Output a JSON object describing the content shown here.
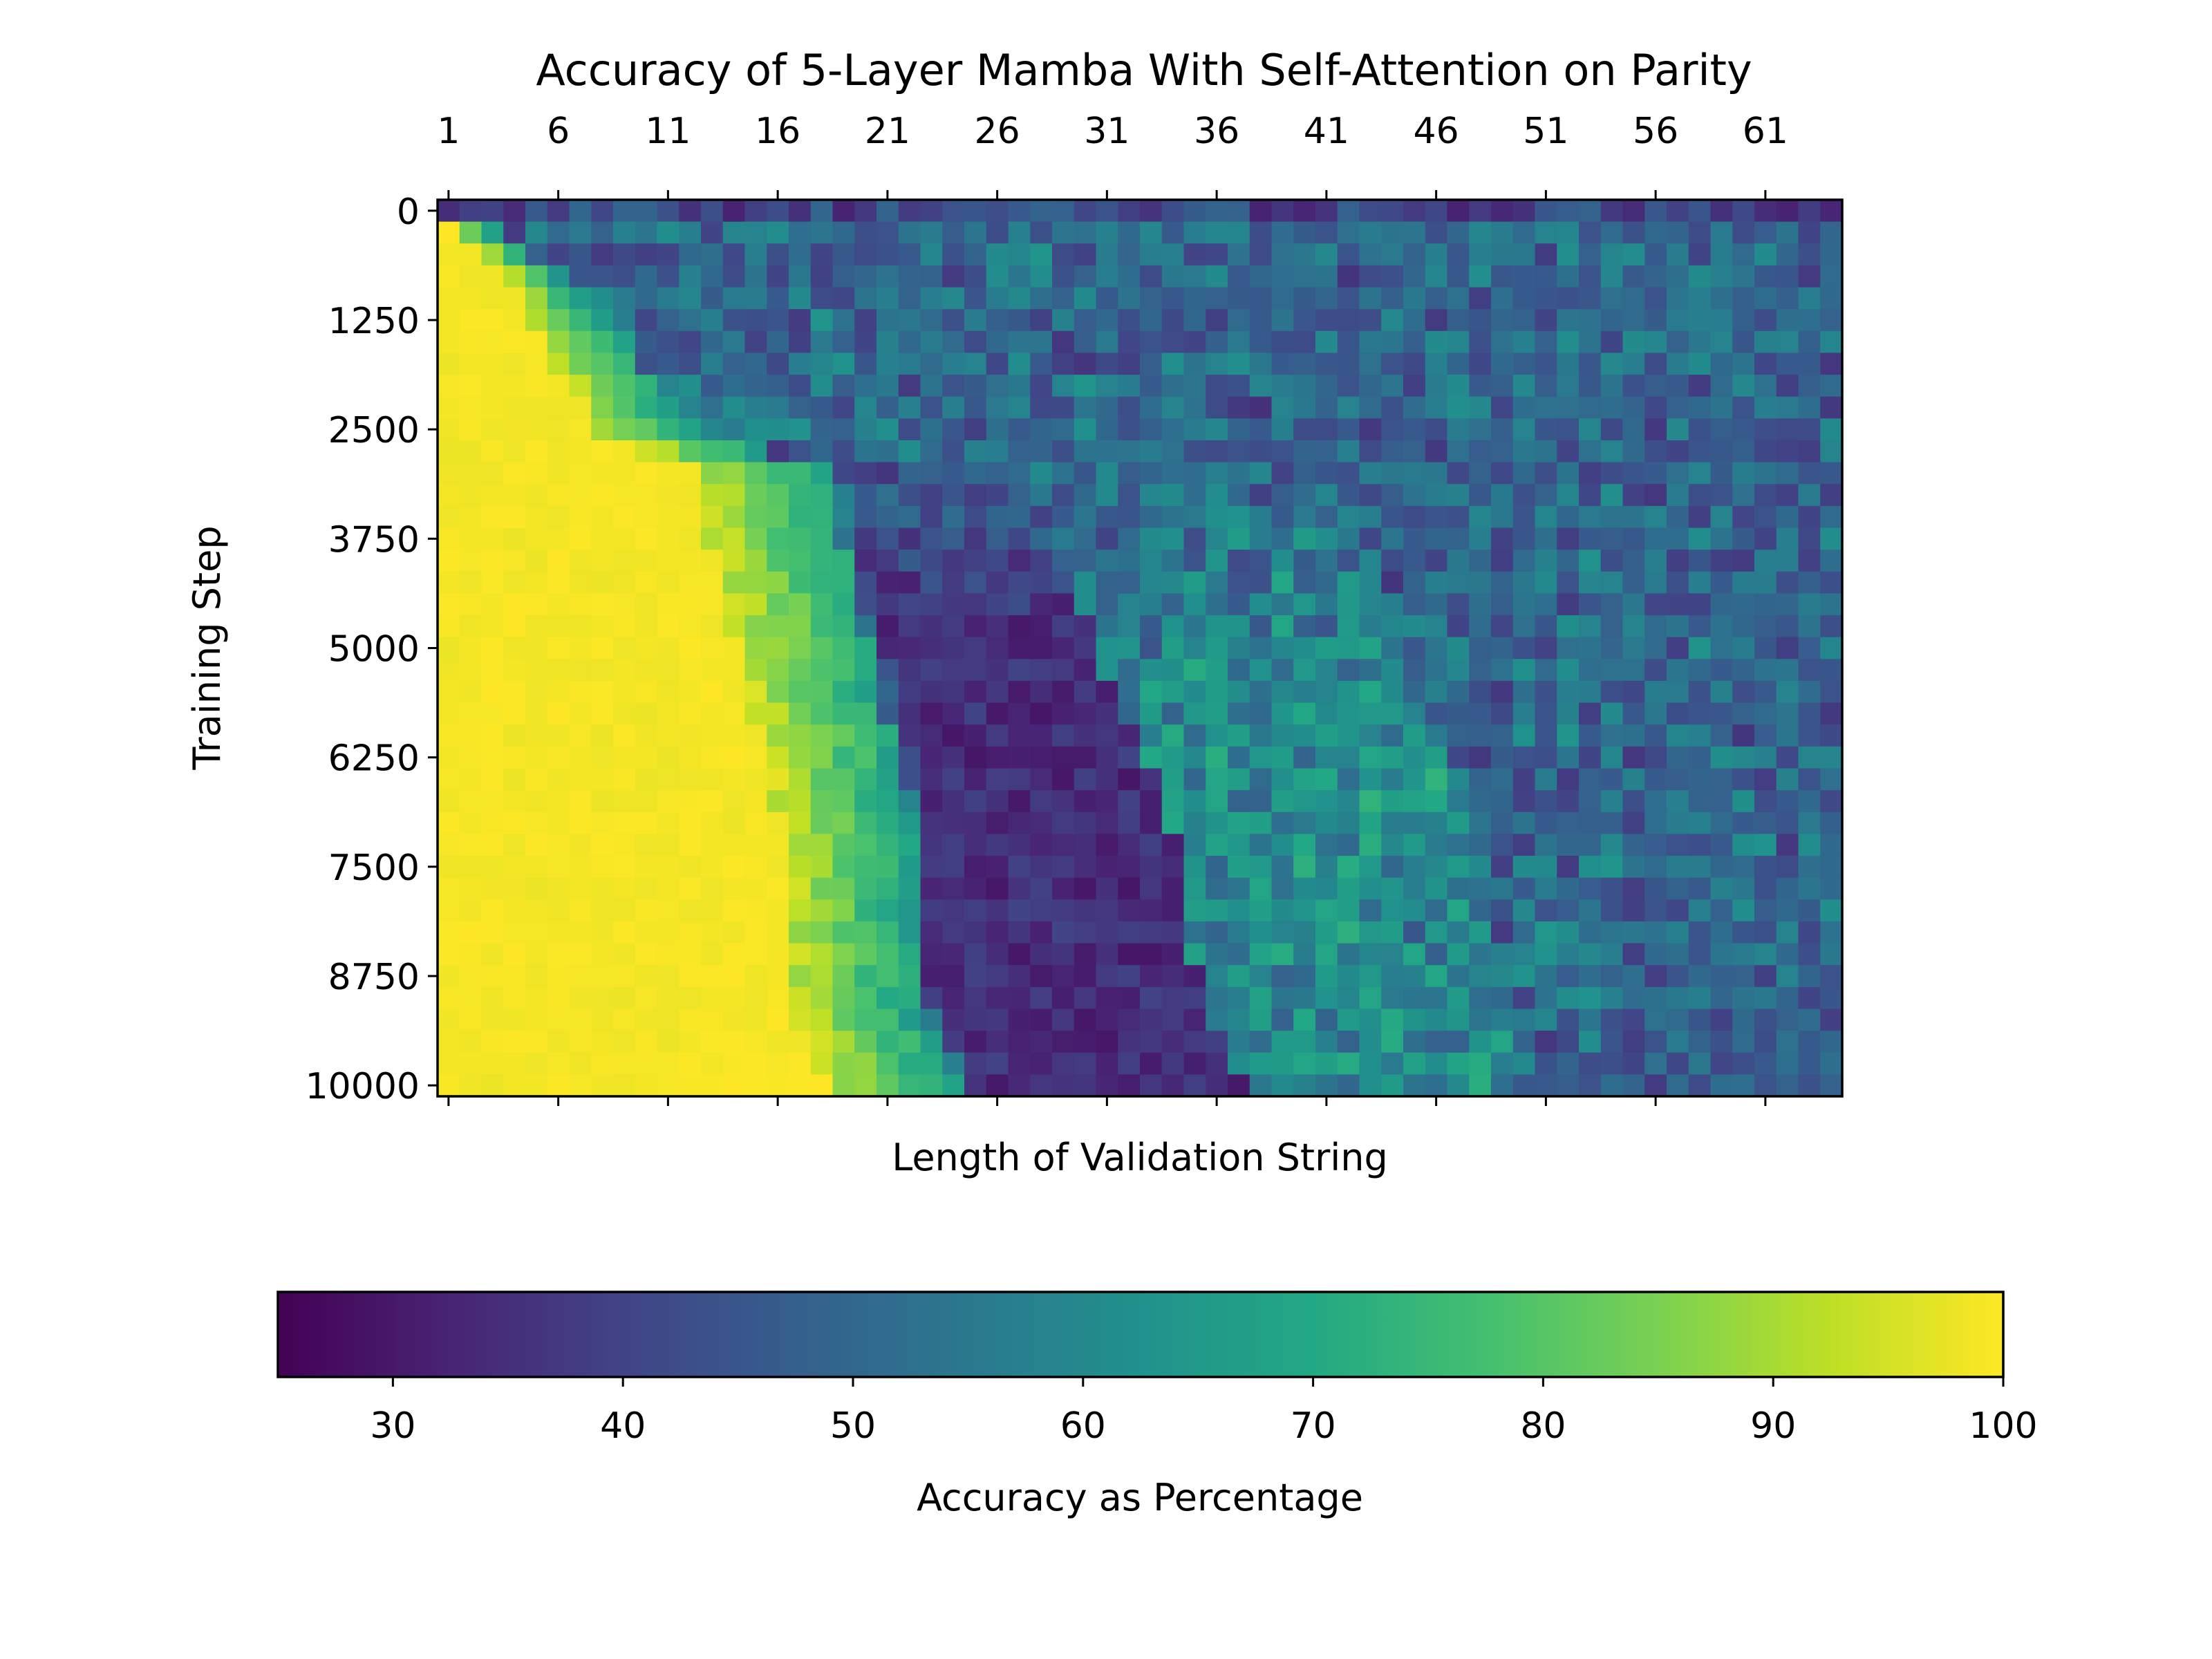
{
  "chart_data": {
    "type": "heatmap",
    "title": "Accuracy of 5-Layer Mamba With Self-Attention on Parity",
    "xlabel": "Length of Validation String",
    "ylabel": "Training Step",
    "x_tick_labels": [
      "1",
      "6",
      "11",
      "16",
      "21",
      "26",
      "31",
      "36",
      "41",
      "46",
      "51",
      "56",
      "61"
    ],
    "y_tick_labels": [
      "0",
      "1250",
      "2500",
      "3750",
      "5000",
      "6250",
      "7500",
      "8750",
      "10000"
    ],
    "x_range": [
      1,
      64
    ],
    "y_range": [
      0,
      10000
    ],
    "n_columns": 64,
    "n_rows": 41,
    "row_step": 250,
    "colormap": "viridis",
    "colorbar": {
      "label": "Accuracy as Percentage",
      "range": [
        25,
        100
      ],
      "tick_labels": [
        "30",
        "40",
        "50",
        "60",
        "70",
        "80",
        "90",
        "100"
      ],
      "orientation": "horizontal",
      "placement": "bottom"
    },
    "frontier_rows": [
      {
        "step": 0,
        "full_accuracy_through_length": 0
      },
      {
        "step": 250,
        "full_accuracy_through_length": 1
      },
      {
        "step": 500,
        "full_accuracy_through_length": 2
      },
      {
        "step": 750,
        "full_accuracy_through_length": 3
      },
      {
        "step": 1000,
        "full_accuracy_through_length": 4
      },
      {
        "step": 1500,
        "full_accuracy_through_length": 5
      },
      {
        "step": 2000,
        "full_accuracy_through_length": 6
      },
      {
        "step": 2500,
        "full_accuracy_through_length": 7
      },
      {
        "step": 3000,
        "full_accuracy_through_length": 12
      },
      {
        "step": 4000,
        "full_accuracy_through_length": 13
      },
      {
        "step": 5000,
        "full_accuracy_through_length": 14
      },
      {
        "step": 6000,
        "full_accuracy_through_length": 15
      },
      {
        "step": 7000,
        "full_accuracy_through_length": 16
      },
      {
        "step": 8000,
        "full_accuracy_through_length": 16
      },
      {
        "step": 9000,
        "full_accuracy_through_length": 16
      },
      {
        "step": 10000,
        "full_accuracy_through_length": 18
      }
    ],
    "regions": [
      {
        "region": "yellow_block",
        "accuracy_percent": 100
      },
      {
        "region": "dark_band_lengths_24_34_steps_3000_10000",
        "accuracy_percent": 28
      },
      {
        "region": "long_strings_background",
        "accuracy_percent": 50
      }
    ]
  }
}
